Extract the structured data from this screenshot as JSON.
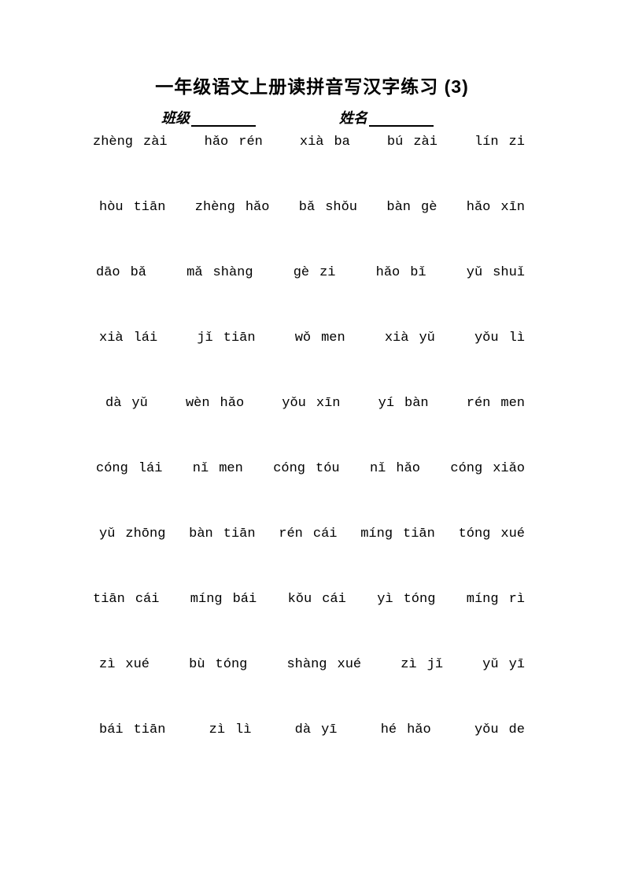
{
  "page": {
    "title": "一年级语文上册读拼音写汉字练习 (3)"
  },
  "header": {
    "class_label": "班级",
    "name_label": "姓名"
  },
  "rows": [
    {
      "indent": 0,
      "pairs": [
        [
          "zhèng",
          "zài"
        ],
        [
          "hǎo",
          "rén"
        ],
        [
          "xià",
          "ba"
        ],
        [
          "bú",
          "zài"
        ],
        [
          "lín",
          "zi"
        ]
      ]
    },
    {
      "indent": 8,
      "pairs": [
        [
          "hòu",
          "tiān"
        ],
        [
          "zhèng",
          "hǎo"
        ],
        [
          "bǎ",
          "shǒu"
        ],
        [
          "bàn",
          "gè"
        ],
        [
          "hǎo",
          "xīn"
        ]
      ]
    },
    {
      "indent": 4,
      "pairs": [
        [
          "dāo",
          "bǎ"
        ],
        [
          "mǎ",
          "shàng"
        ],
        [
          "gè",
          "zi"
        ],
        [
          "hǎo",
          "bǐ"
        ],
        [
          "yǔ",
          "shuǐ"
        ]
      ]
    },
    {
      "indent": 8,
      "pairs": [
        [
          "xià",
          "lái"
        ],
        [
          "jǐ",
          "tiān"
        ],
        [
          "wǒ",
          "men"
        ],
        [
          "xià",
          "yǔ"
        ],
        [
          "yǒu",
          "lì"
        ]
      ]
    },
    {
      "indent": 16,
      "pairs": [
        [
          "dà",
          "yǔ"
        ],
        [
          "wèn",
          "hǎo"
        ],
        [
          "yǒu",
          "xīn"
        ],
        [
          "yí",
          "bàn"
        ],
        [
          "rén",
          "men"
        ]
      ]
    },
    {
      "indent": 4,
      "pairs": [
        [
          "cóng",
          "lái"
        ],
        [
          "nǐ",
          "men"
        ],
        [
          "cóng",
          "tóu"
        ],
        [
          "nǐ",
          "hǎo"
        ],
        [
          "cóng",
          "xiǎo"
        ]
      ]
    },
    {
      "indent": 8,
      "pairs": [
        [
          "yǔ",
          "zhōng"
        ],
        [
          "bàn",
          "tiān"
        ],
        [
          "rén",
          "cái"
        ],
        [
          "míng",
          "tiān"
        ],
        [
          "tóng",
          "xué"
        ]
      ]
    },
    {
      "indent": 0,
      "pairs": [
        [
          "tiān",
          "cái"
        ],
        [
          "míng",
          "bái"
        ],
        [
          "kǒu",
          "cái"
        ],
        [
          "yì",
          "tóng"
        ],
        [
          "míng",
          "rì"
        ]
      ]
    },
    {
      "indent": 8,
      "pairs": [
        [
          "zì",
          "xué"
        ],
        [
          "bù",
          "tóng"
        ],
        [
          "shàng",
          "xué"
        ],
        [
          "zì",
          "jǐ"
        ],
        [
          "yǔ",
          "yī"
        ]
      ]
    },
    {
      "indent": 8,
      "pairs": [
        [
          "bái",
          "tiān"
        ],
        [
          "zì",
          "lì"
        ],
        [
          "dà",
          "yī"
        ],
        [
          "hé",
          "hǎo"
        ],
        [
          "yǒu",
          "de"
        ]
      ]
    }
  ]
}
